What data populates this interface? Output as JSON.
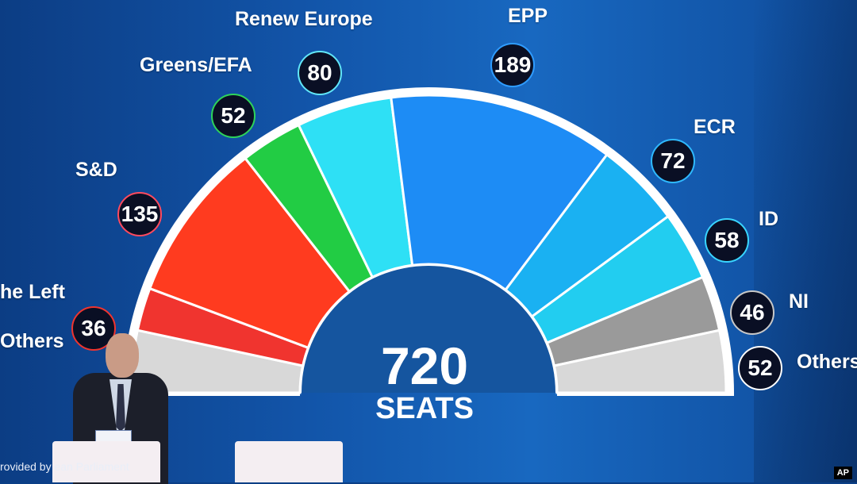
{
  "chart_data": {
    "type": "pie",
    "style": "parliament-hemicycle",
    "total": "720",
    "total_unit": "SEATS",
    "series": [
      {
        "name": "Others",
        "value": 52,
        "color": "#d8d8d8",
        "label": "Others",
        "badge_border": "#ffffff"
      },
      {
        "name": "The Left",
        "value": 36,
        "color": "#f0342f",
        "label": "he Left",
        "badge_border": "#f0342f"
      },
      {
        "name": "S&D",
        "value": 135,
        "color": "#ff3b1f",
        "label": "S&D",
        "badge_border": "#ff4a5e"
      },
      {
        "name": "Greens/EFA",
        "value": 52,
        "color": "#22cc44",
        "label": "Greens/EFA",
        "badge_border": "#2ed35a"
      },
      {
        "name": "Renew Europe",
        "value": 80,
        "color": "#2ee0f5",
        "label": "Renew Europe",
        "badge_border": "#61e6f8"
      },
      {
        "name": "EPP",
        "value": 189,
        "color": "#1d8cf5",
        "label": "EPP",
        "badge_border": "#2f9cff"
      },
      {
        "name": "ECR",
        "value": 72,
        "color": "#1ab1f2",
        "label": "ECR",
        "badge_border": "#2fb9ff"
      },
      {
        "name": "ID",
        "value": 58,
        "color": "#22cdf0",
        "label": "ID",
        "badge_border": "#39d5ff"
      },
      {
        "name": "NI",
        "value": 46,
        "color": "#9a9a9a",
        "label": "NI",
        "badge_border": "#c8c8c8"
      },
      {
        "name": "Others",
        "value": 52,
        "color": "#d8d8d8",
        "label": "Others",
        "badge_border": "#ffffff"
      }
    ],
    "left_others_label": "Others"
  },
  "caption": "rovided by        ean Parliament",
  "credit": "AP"
}
